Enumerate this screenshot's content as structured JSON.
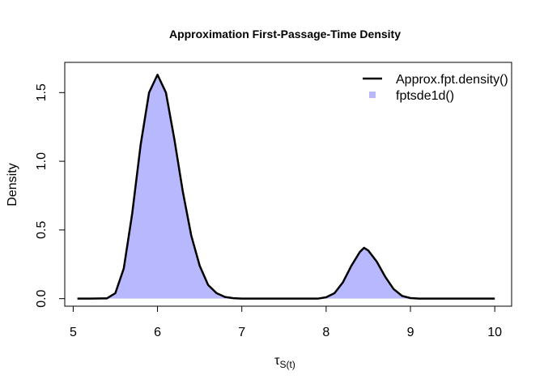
{
  "chart_data": {
    "type": "area",
    "title": "Approximation First-Passage-Time Density",
    "xlabel": "τ",
    "xlabel_subscript": "S(t)",
    "ylabel": "Density",
    "xlim": [
      4.9,
      10.2
    ],
    "ylim": [
      -0.055,
      1.72
    ],
    "x_ticks": [
      5,
      6,
      7,
      8,
      9,
      10
    ],
    "y_ticks": [
      0.0,
      0.5,
      1.0,
      1.5
    ],
    "x_tick_labels": [
      "5",
      "6",
      "7",
      "8",
      "9",
      "10"
    ],
    "y_tick_labels": [
      "0.0",
      "0.5",
      "1.0",
      "1.5"
    ],
    "grid": false,
    "legend_position": "top-right",
    "series": [
      {
        "name": "Approx.fpt.density()",
        "style": "line",
        "color": "#000000",
        "x": [
          5.05,
          5.2,
          5.4,
          5.5,
          5.6,
          5.7,
          5.8,
          5.9,
          6.0,
          6.1,
          6.2,
          6.3,
          6.4,
          6.5,
          6.6,
          6.7,
          6.8,
          6.9,
          7.0,
          7.5,
          7.9,
          8.0,
          8.1,
          8.2,
          8.3,
          8.4,
          8.45,
          8.5,
          8.6,
          8.7,
          8.8,
          8.9,
          9.0,
          9.1,
          9.5,
          10.0
        ],
        "y": [
          0.0,
          0.0,
          0.002,
          0.04,
          0.22,
          0.62,
          1.12,
          1.5,
          1.63,
          1.5,
          1.16,
          0.78,
          0.46,
          0.24,
          0.1,
          0.04,
          0.012,
          0.003,
          0.0,
          0.0,
          0.0,
          0.01,
          0.04,
          0.12,
          0.24,
          0.34,
          0.37,
          0.35,
          0.27,
          0.16,
          0.07,
          0.02,
          0.004,
          0.0,
          0.0,
          0.0
        ]
      },
      {
        "name": "fptsde1d()",
        "style": "filled-density",
        "color": "#b8b8ff",
        "x": [
          5.05,
          5.2,
          5.4,
          5.5,
          5.6,
          5.7,
          5.8,
          5.9,
          6.0,
          6.1,
          6.2,
          6.3,
          6.4,
          6.5,
          6.6,
          6.7,
          6.8,
          6.9,
          7.0,
          7.5,
          7.9,
          8.0,
          8.1,
          8.2,
          8.3,
          8.4,
          8.45,
          8.5,
          8.6,
          8.7,
          8.8,
          8.9,
          9.0,
          9.1,
          9.5,
          10.0
        ],
        "y": [
          0.0,
          0.0,
          0.003,
          0.05,
          0.23,
          0.63,
          1.12,
          1.49,
          1.61,
          1.49,
          1.16,
          0.78,
          0.46,
          0.24,
          0.1,
          0.04,
          0.012,
          0.003,
          0.0,
          0.0,
          0.0,
          0.01,
          0.04,
          0.12,
          0.24,
          0.34,
          0.36,
          0.35,
          0.27,
          0.16,
          0.07,
          0.02,
          0.004,
          0.0,
          0.0,
          0.0
        ]
      }
    ]
  }
}
